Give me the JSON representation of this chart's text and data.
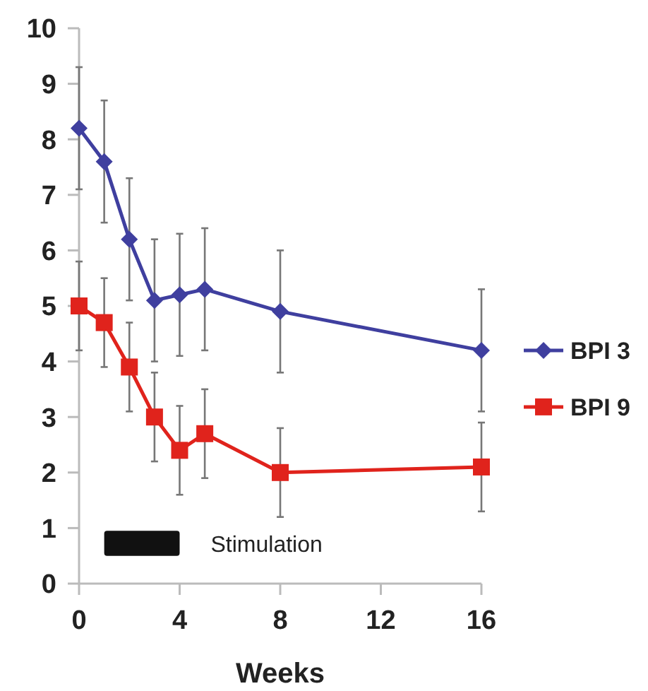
{
  "chart_data": {
    "type": "line",
    "xlabel": "Weeks",
    "x": [
      0,
      1,
      2,
      3,
      4,
      5,
      8,
      16
    ],
    "series": [
      {
        "name": "BPI 3",
        "color": "#3f3f9f",
        "values": [
          8.2,
          7.6,
          6.2,
          5.1,
          5.2,
          5.3,
          4.9,
          4.2
        ],
        "errors": [
          1.1,
          1.1,
          1.1,
          1.1,
          1.1,
          1.1,
          1.1,
          1.1
        ],
        "marker": "diamond"
      },
      {
        "name": "BPI 9",
        "color": "#e0231c",
        "values": [
          5.0,
          4.7,
          3.9,
          3.0,
          2.4,
          2.7,
          2.0,
          2.1
        ],
        "errors": [
          0.8,
          0.8,
          0.8,
          0.8,
          0.8,
          0.8,
          0.8,
          0.8
        ],
        "marker": "square"
      }
    ],
    "xlim": [
      0,
      16
    ],
    "xticks": [
      0,
      4,
      8,
      12,
      16
    ],
    "ylim": [
      0,
      10
    ],
    "yticks": [
      0,
      1,
      2,
      3,
      4,
      5,
      6,
      7,
      8,
      9,
      10
    ],
    "bands": [
      {
        "axis": "x",
        "from": 1,
        "to": 4,
        "label": "Stimulation",
        "color": "#111111"
      }
    ],
    "grid": false,
    "legend": "right"
  }
}
